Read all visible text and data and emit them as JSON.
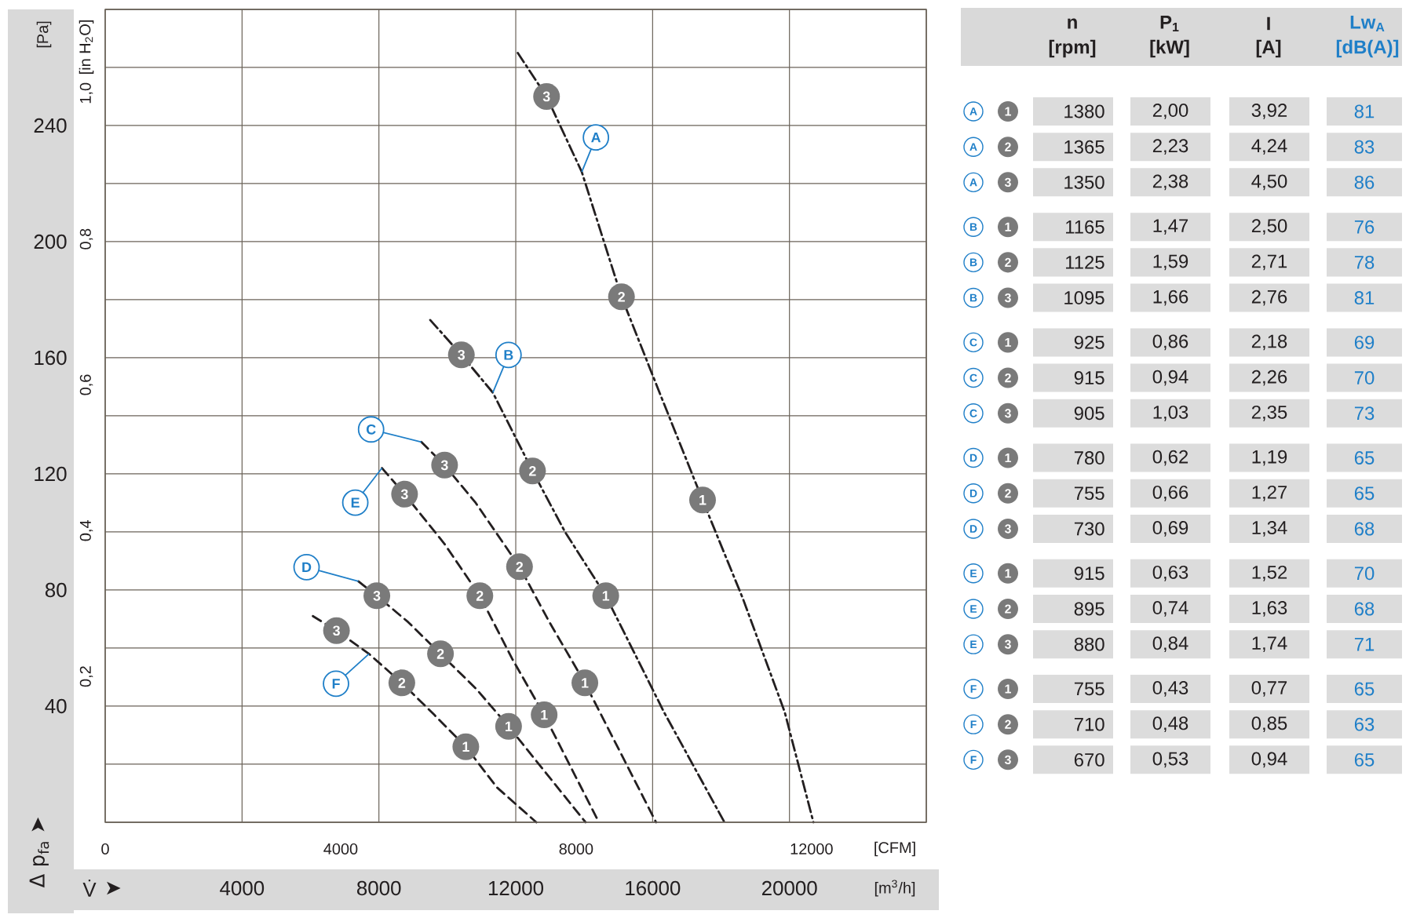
{
  "chart_data": [
    {
      "type": "line",
      "xlabel": "[m$^{3}$/h]",
      "x2label": "[CFM]",
      "ylabel": "[Pa]",
      "y2label": "[in H$_{2}$O]",
      "xlim": [
        0,
        24000
      ],
      "xticks": [
        4000,
        8000,
        12000,
        16000,
        20000
      ],
      "x2lim": [
        0,
        13950
      ],
      "x2ticks": [
        0,
        4000,
        8000,
        12000
      ],
      "ylim": [
        0,
        280
      ],
      "yticks": [
        40,
        80,
        120,
        160,
        200,
        240
      ],
      "y2lim": [
        0,
        1.115
      ],
      "y2ticks": [
        {
          "value": 0.2,
          "label": "0,2"
        },
        {
          "value": 0.4,
          "label": "0,4"
        },
        {
          "value": 0.6,
          "label": "0,6"
        },
        {
          "value": 0.8,
          "label": "0,8"
        },
        {
          "value": 1.0,
          "label": "1,0"
        }
      ],
      "grid": true,
      "series": [
        {
          "type": "line",
          "name": "A",
          "color": "#231f20",
          "line_style": "dashdot",
          "x": [
            12060,
            12900,
            13930,
            15090,
            16270,
            17460,
            18640,
            19860,
            20700
          ],
          "values": [
            265,
            250,
            224,
            181,
            146,
            111,
            77,
            38,
            0
          ]
        },
        {
          "type": "line",
          "name": "B",
          "color": "#231f20",
          "line_style": "dashdot",
          "x": [
            9500,
            10410,
            11330,
            12490,
            13440,
            14630,
            16330,
            18100
          ],
          "values": [
            173,
            161,
            148,
            121,
            100,
            78,
            38,
            0
          ]
        },
        {
          "type": "line",
          "name": "C",
          "color": "#231f20",
          "line_style": "dashed",
          "x": [
            9240,
            9920,
            10830,
            12110,
            12980,
            14020,
            16100
          ],
          "values": [
            131,
            123,
            110,
            88,
            69,
            48,
            0
          ]
        },
        {
          "type": "line",
          "name": "D",
          "color": "#231f20",
          "line_style": "dashed",
          "x": [
            7400,
            7940,
            8850,
            9800,
            10840,
            11790,
            14040
          ],
          "values": [
            83,
            78,
            69,
            58,
            46,
            33,
            0
          ]
        },
        {
          "type": "line",
          "name": "E",
          "color": "#231f20",
          "line_style": "dashed",
          "x": [
            8090,
            8750,
            9910,
            10950,
            11910,
            12830,
            14430
          ],
          "values": [
            122,
            113,
            96,
            78,
            56,
            37,
            0
          ]
        },
        {
          "type": "line",
          "name": "F",
          "color": "#231f20",
          "line_style": "dashed",
          "x": [
            6070,
            6760,
            7710,
            8670,
            9620,
            10540,
            11450,
            12600
          ],
          "values": [
            71,
            66,
            58,
            48,
            37,
            26,
            12,
            0
          ]
        }
      ],
      "annotations": [
        {
          "text": "1",
          "x": 17460,
          "y": 111
        },
        {
          "text": "2",
          "x": 15090,
          "y": 181
        },
        {
          "text": "3",
          "x": 12900,
          "y": 250
        },
        {
          "text": "1",
          "x": 14630,
          "y": 78
        },
        {
          "text": "2",
          "x": 12490,
          "y": 121
        },
        {
          "text": "3",
          "x": 10410,
          "y": 161
        },
        {
          "text": "1",
          "x": 14020,
          "y": 48
        },
        {
          "text": "2",
          "x": 12110,
          "y": 88
        },
        {
          "text": "3",
          "x": 9920,
          "y": 123
        },
        {
          "text": "1",
          "x": 11790,
          "y": 33
        },
        {
          "text": "2",
          "x": 9800,
          "y": 58
        },
        {
          "text": "3",
          "x": 7940,
          "y": 78
        },
        {
          "text": "1",
          "x": 12830,
          "y": 37
        },
        {
          "text": "2",
          "x": 10950,
          "y": 78
        },
        {
          "text": "3",
          "x": 8750,
          "y": 113
        },
        {
          "text": "1",
          "x": 10540,
          "y": 26
        },
        {
          "text": "2",
          "x": 8670,
          "y": 48
        },
        {
          "text": "3",
          "x": 6760,
          "y": 66
        },
        "Δ p$_{fa}$ ➤",
        "V̇",
        "➤"
      ]
    },
    {
      "type": "other",
      "annotations": [
        "n",
        "[rpm]",
        "P$_{1}$",
        "[kW]",
        "I",
        "[A]",
        "Lw$_{A}$",
        "[dB(A)]",
        "A",
        "1",
        "1380",
        "2,00",
        "3,92",
        "81",
        "A",
        "2",
        "1365",
        "2,23",
        "4,24",
        "83",
        "A",
        "3",
        "1350",
        "2,38",
        "4,50",
        "86",
        "B",
        "1",
        "1165",
        "1,47",
        "2,50",
        "76",
        "B",
        "2",
        "1125",
        "1,59",
        "2,71",
        "78",
        "B",
        "3",
        "1095",
        "1,66",
        "2,76",
        "81",
        "C",
        "1",
        "925",
        "0,86",
        "2,18",
        "69",
        "C",
        "2",
        "915",
        "0,94",
        "2,26",
        "70",
        "C",
        "3",
        "905",
        "1,03",
        "2,35",
        "73",
        "D",
        "1",
        "780",
        "0,62",
        "1,19",
        "65",
        "D",
        "2",
        "755",
        "0,66",
        "1,27",
        "65",
        "D",
        "3",
        "730",
        "0,69",
        "1,34",
        "68",
        "E",
        "1",
        "915",
        "0,63",
        "1,52",
        "70",
        "E",
        "2",
        "895",
        "0,74",
        "1,63",
        "68",
        "E",
        "3",
        "880",
        "0,84",
        "1,74",
        "71",
        "F",
        "1",
        "755",
        "0,43",
        "0,77",
        "65",
        "F",
        "2",
        "710",
        "0,48",
        "0,85",
        "63",
        "F",
        "3",
        "670",
        "0,53",
        "0,94",
        "65"
      ]
    }
  ]
}
